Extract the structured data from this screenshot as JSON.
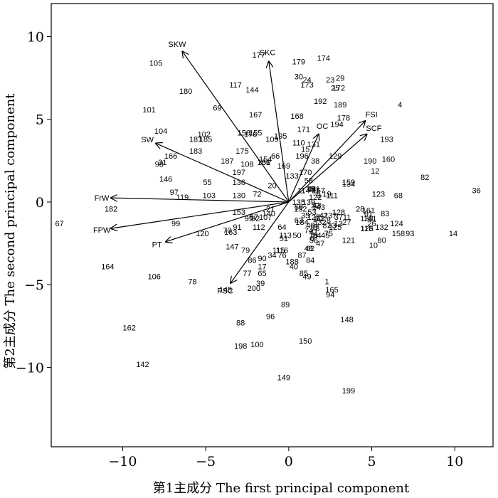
{
  "chart_data": {
    "type": "scatter",
    "subtype": "pca-biplot",
    "xlabel": "第1主成分 The first principal component",
    "ylabel": "第2主成分  The second principal component",
    "xlim": [
      -14.3,
      12.3
    ],
    "ylim": [
      -14.8,
      12.0
    ],
    "xticks": [
      -10,
      -5,
      0,
      5,
      10
    ],
    "yticks": [
      -10,
      -5,
      0,
      5,
      10
    ],
    "xtick_labels": [
      "−10",
      "−5",
      "0",
      "5",
      "10"
    ],
    "ytick_labels": [
      "−10",
      "−5",
      "0",
      "5",
      "10"
    ],
    "grid": false,
    "loadings": [
      {
        "name": "SKW",
        "x": -6.4,
        "y": 9.1
      },
      {
        "name": "SKC",
        "x": -1.2,
        "y": 8.5
      },
      {
        "name": "SW",
        "x": -8.0,
        "y": 3.55
      },
      {
        "name": "FrW",
        "x": -10.7,
        "y": 0.25
      },
      {
        "name": "FPW",
        "x": -10.7,
        "y": -1.6
      },
      {
        "name": "PT",
        "x": -7.4,
        "y": -2.4
      },
      {
        "name": "PSC",
        "x": -3.5,
        "y": -4.9
      },
      {
        "name": "OC",
        "x": 1.8,
        "y": 4.1
      },
      {
        "name": "FSI",
        "x": 4.6,
        "y": 4.9
      },
      {
        "name": "SCF",
        "x": 4.7,
        "y": 4.1
      }
    ],
    "points": [
      {
        "label": "1",
        "x": 2.3,
        "y": -4.8
      },
      {
        "label": "2",
        "x": 1.7,
        "y": -4.3
      },
      {
        "label": "3",
        "x": 1.6,
        "y": -1.5
      },
      {
        "label": "4",
        "x": 6.7,
        "y": 5.9
      },
      {
        "label": "5",
        "x": 1.6,
        "y": -1.2
      },
      {
        "label": "6",
        "x": 1.4,
        "y": -2.2
      },
      {
        "label": "7",
        "x": 1.7,
        "y": -1.5
      },
      {
        "label": "8",
        "x": 2.4,
        "y": -1.1
      },
      {
        "label": "9",
        "x": 1.8,
        "y": 0.4
      },
      {
        "label": "10",
        "x": 5.1,
        "y": -2.6
      },
      {
        "label": "11",
        "x": 3.5,
        "y": -0.9
      },
      {
        "label": "12",
        "x": 5.2,
        "y": 1.9
      },
      {
        "label": "13",
        "x": 3.0,
        "y": -1.3
      },
      {
        "label": "14",
        "x": 9.9,
        "y": -1.9
      },
      {
        "label": "15",
        "x": 1.0,
        "y": 3.2
      },
      {
        "label": "16",
        "x": 1.5,
        "y": -2.0
      },
      {
        "label": "17",
        "x": -1.6,
        "y": -3.9
      },
      {
        "label": "18",
        "x": 1.3,
        "y": 0.8
      },
      {
        "label": "19",
        "x": 2.3,
        "y": 0.5
      },
      {
        "label": "20",
        "x": -1.0,
        "y": 1.0
      },
      {
        "label": "21",
        "x": -1.1,
        "y": -0.4
      },
      {
        "label": "22",
        "x": 1.6,
        "y": -0.2
      },
      {
        "label": "23",
        "x": 2.5,
        "y": 7.4
      },
      {
        "label": "24",
        "x": 1.1,
        "y": 7.4
      },
      {
        "label": "25",
        "x": 2.8,
        "y": 6.9
      },
      {
        "label": "26",
        "x": 5.0,
        "y": -1.3
      },
      {
        "label": "27",
        "x": 3.5,
        "y": -1.2
      },
      {
        "label": "28",
        "x": 4.3,
        "y": -0.4
      },
      {
        "label": "29",
        "x": 3.1,
        "y": 7.5
      },
      {
        "label": "30",
        "x": 0.6,
        "y": 7.6
      },
      {
        "label": "31",
        "x": -7.6,
        "y": 2.4
      },
      {
        "label": "32",
        "x": 2.0,
        "y": -1.2
      },
      {
        "label": "33",
        "x": 2.6,
        "y": -1.4
      },
      {
        "label": "34",
        "x": -1.0,
        "y": -3.2
      },
      {
        "label": "35",
        "x": 1.0,
        "y": -0.8
      },
      {
        "label": "36",
        "x": 11.3,
        "y": 0.7
      },
      {
        "label": "37",
        "x": 3.0,
        "y": -0.9
      },
      {
        "label": "38",
        "x": 1.6,
        "y": 2.5
      },
      {
        "label": "39",
        "x": -1.7,
        "y": -4.9
      },
      {
        "label": "40",
        "x": 0.3,
        "y": -3.9
      },
      {
        "label": "41",
        "x": 1.5,
        "y": -1.8
      },
      {
        "label": "42",
        "x": 2.1,
        "y": -0.8
      },
      {
        "label": "43",
        "x": 1.7,
        "y": -0.2
      },
      {
        "label": "44",
        "x": 1.4,
        "y": 0.8
      },
      {
        "label": "45",
        "x": 2.2,
        "y": -2.0
      },
      {
        "label": "46",
        "x": 1.3,
        "y": -1.4
      },
      {
        "label": "47",
        "x": 1.9,
        "y": -2.5
      },
      {
        "label": "48",
        "x": 1.2,
        "y": -2.8
      },
      {
        "label": "49",
        "x": 1.1,
        "y": -4.5
      },
      {
        "label": "50",
        "x": 0.5,
        "y": -2.0
      },
      {
        "label": "51",
        "x": -0.3,
        "y": -2.2
      },
      {
        "label": "52",
        "x": 1.9,
        "y": -1.0
      },
      {
        "label": "53",
        "x": 1.4,
        "y": -0.6
      },
      {
        "label": "54",
        "x": 1.7,
        "y": -2.0
      },
      {
        "label": "55",
        "x": -4.9,
        "y": 1.2
      },
      {
        "label": "56",
        "x": 1.5,
        "y": -2.3
      },
      {
        "label": "57",
        "x": -2.1,
        "y": -0.9
      },
      {
        "label": "58",
        "x": 1.2,
        "y": 1.3
      },
      {
        "label": "59",
        "x": 0.6,
        "y": -0.3
      },
      {
        "label": "60",
        "x": 1.8,
        "y": -1.0
      },
      {
        "label": "61",
        "x": 4.8,
        "y": -0.7
      },
      {
        "label": "62",
        "x": 1.3,
        "y": -2.8
      },
      {
        "label": "63",
        "x": 0.6,
        "y": -1.1
      },
      {
        "label": "64",
        "x": -0.4,
        "y": -1.5
      },
      {
        "label": "65",
        "x": -1.6,
        "y": -4.3
      },
      {
        "label": "66",
        "x": -0.8,
        "y": 2.8
      },
      {
        "label": "67",
        "x": -13.8,
        "y": -1.3
      },
      {
        "label": "68",
        "x": 6.6,
        "y": 0.4
      },
      {
        "label": "69",
        "x": -4.3,
        "y": 5.7
      },
      {
        "label": "70",
        "x": -3.7,
        "y": -1.7
      },
      {
        "label": "71",
        "x": 1.6,
        "y": 0.7
      },
      {
        "label": "72",
        "x": -1.9,
        "y": 0.5
      },
      {
        "label": "73",
        "x": 1.6,
        "y": -1.6
      },
      {
        "label": "74",
        "x": 1.2,
        "y": -1.7
      },
      {
        "label": "75",
        "x": 2.4,
        "y": -1.9
      },
      {
        "label": "76",
        "x": -0.4,
        "y": -3.2
      },
      {
        "label": "77",
        "x": -2.5,
        "y": -4.3
      },
      {
        "label": "78",
        "x": -5.8,
        "y": -4.8
      },
      {
        "label": "79",
        "x": -2.6,
        "y": -2.9
      },
      {
        "label": "80",
        "x": 5.6,
        "y": -2.3
      },
      {
        "label": "81",
        "x": 2.3,
        "y": -1.4
      },
      {
        "label": "82",
        "x": 8.2,
        "y": 1.5
      },
      {
        "label": "83",
        "x": 5.8,
        "y": -0.7
      },
      {
        "label": "84",
        "x": 1.3,
        "y": -3.5
      },
      {
        "label": "85",
        "x": 0.9,
        "y": -4.3
      },
      {
        "label": "86",
        "x": -2.2,
        "y": -3.5
      },
      {
        "label": "87",
        "x": 0.8,
        "y": -3.2
      },
      {
        "label": "88",
        "x": -2.9,
        "y": -7.3
      },
      {
        "label": "89",
        "x": -0.2,
        "y": -6.2
      },
      {
        "label": "90",
        "x": -1.6,
        "y": -3.4
      },
      {
        "label": "91",
        "x": -3.1,
        "y": -1.5
      },
      {
        "label": "92",
        "x": -2.0,
        "y": -1.0
      },
      {
        "label": "93",
        "x": 7.3,
        "y": -1.9
      },
      {
        "label": "94",
        "x": 2.5,
        "y": -5.6
      },
      {
        "label": "95",
        "x": -2.4,
        "y": -1.0
      },
      {
        "label": "96",
        "x": -1.1,
        "y": -6.9
      },
      {
        "label": "97",
        "x": -6.9,
        "y": 0.6
      },
      {
        "label": "98",
        "x": -7.8,
        "y": 2.3
      },
      {
        "label": "99",
        "x": -6.8,
        "y": -1.3
      },
      {
        "label": "100",
        "x": -1.9,
        "y": -8.6
      },
      {
        "label": "101",
        "x": -8.4,
        "y": 5.6
      },
      {
        "label": "102",
        "x": -5.1,
        "y": 4.1
      },
      {
        "label": "103",
        "x": -4.8,
        "y": 0.4
      },
      {
        "label": "104",
        "x": -7.7,
        "y": 4.3
      },
      {
        "label": "105",
        "x": -8.0,
        "y": 8.4
      },
      {
        "label": "106",
        "x": -8.1,
        "y": -4.5
      },
      {
        "label": "107",
        "x": -1.4,
        "y": -0.9
      },
      {
        "label": "108",
        "x": -2.5,
        "y": 2.3
      },
      {
        "label": "109",
        "x": -1.0,
        "y": 3.8
      },
      {
        "label": "110",
        "x": 0.6,
        "y": 3.6
      },
      {
        "label": "111",
        "x": 2.6,
        "y": 0.4
      },
      {
        "label": "112",
        "x": -1.8,
        "y": -1.5
      },
      {
        "label": "113",
        "x": -0.2,
        "y": -2.0
      },
      {
        "label": "114",
        "x": 0.9,
        "y": 0.7
      },
      {
        "label": "115",
        "x": -0.6,
        "y": -2.9
      },
      {
        "label": "116",
        "x": -0.4,
        "y": -2.9
      },
      {
        "label": "117",
        "x": -3.2,
        "y": 7.1
      },
      {
        "label": "118",
        "x": 4.7,
        "y": -1.6
      },
      {
        "label": "119",
        "x": -6.4,
        "y": 0.3
      },
      {
        "label": "120",
        "x": -5.2,
        "y": -1.9
      },
      {
        "label": "121",
        "x": 3.6,
        "y": -2.3
      },
      {
        "label": "122",
        "x": 1.6,
        "y": 0.3
      },
      {
        "label": "123",
        "x": 5.4,
        "y": 0.5
      },
      {
        "label": "124",
        "x": 6.5,
        "y": -1.3
      },
      {
        "label": "125",
        "x": 2.8,
        "y": -1.5
      },
      {
        "label": "126",
        "x": 4.7,
        "y": -1.6
      },
      {
        "label": "127",
        "x": 1.5,
        "y": -0.9
      },
      {
        "label": "128",
        "x": 3.0,
        "y": -0.6
      },
      {
        "label": "129",
        "x": 2.8,
        "y": 2.8
      },
      {
        "label": "130",
        "x": -3.0,
        "y": 0.4
      },
      {
        "label": "131",
        "x": 1.5,
        "y": 3.5
      },
      {
        "label": "132",
        "x": 5.6,
        "y": -1.5
      },
      {
        "label": "133",
        "x": 0.2,
        "y": 1.6
      },
      {
        "label": "134",
        "x": 3.6,
        "y": 1.1
      },
      {
        "label": "135",
        "x": 0.6,
        "y": 0.0
      },
      {
        "label": "136",
        "x": -3.0,
        "y": 1.2
      },
      {
        "label": "137",
        "x": 2.5,
        "y": -0.8
      },
      {
        "label": "138",
        "x": 4.7,
        "y": -1.0
      },
      {
        "label": "139",
        "x": 1.2,
        "y": 0.0
      },
      {
        "label": "140",
        "x": -1.2,
        "y": -0.7
      },
      {
        "label": "141",
        "x": 4.9,
        "y": -1.0
      },
      {
        "label": "142",
        "x": -8.8,
        "y": -9.8
      },
      {
        "label": "143",
        "x": 1.8,
        "y": -0.3
      },
      {
        "label": "144",
        "x": -2.2,
        "y": 6.8
      },
      {
        "label": "145",
        "x": -3.8,
        "y": -5.3
      },
      {
        "label": "146",
        "x": -7.4,
        "y": 1.4
      },
      {
        "label": "147",
        "x": -3.4,
        "y": -2.7
      },
      {
        "label": "148",
        "x": 3.5,
        "y": -7.1
      },
      {
        "label": "149",
        "x": -0.3,
        "y": -10.6
      },
      {
        "label": "150",
        "x": 1.0,
        "y": -8.4
      },
      {
        "label": "151",
        "x": -1.5,
        "y": 2.4
      },
      {
        "label": "152",
        "x": 0.7,
        "y": -0.4
      },
      {
        "label": "153",
        "x": -3.0,
        "y": -0.6
      },
      {
        "label": "154",
        "x": -1.4,
        "y": 2.6
      },
      {
        "label": "155",
        "x": -2.0,
        "y": 4.2
      },
      {
        "label": "156",
        "x": -2.7,
        "y": 4.2
      },
      {
        "label": "157",
        "x": 1.8,
        "y": 0.7
      },
      {
        "label": "158",
        "x": 6.6,
        "y": -1.9
      },
      {
        "label": "159",
        "x": 3.6,
        "y": 1.2
      },
      {
        "label": "160",
        "x": 6.0,
        "y": 2.6
      },
      {
        "label": "161",
        "x": 4.8,
        "y": -0.5
      },
      {
        "label": "162",
        "x": -9.6,
        "y": -7.6
      },
      {
        "label": "163",
        "x": -3.5,
        "y": -1.8
      },
      {
        "label": "164",
        "x": -10.9,
        "y": -3.9
      },
      {
        "label": "165",
        "x": 2.6,
        "y": -5.3
      },
      {
        "label": "166",
        "x": -7.1,
        "y": 2.8
      },
      {
        "label": "167",
        "x": -2.0,
        "y": 5.3
      },
      {
        "label": "168",
        "x": 0.5,
        "y": 5.2
      },
      {
        "label": "169",
        "x": -0.3,
        "y": 2.2
      },
      {
        "label": "170",
        "x": 1.0,
        "y": 1.8
      },
      {
        "label": "171",
        "x": 0.9,
        "y": 4.4
      },
      {
        "label": "172",
        "x": 3.0,
        "y": 6.9
      },
      {
        "label": "173",
        "x": 1.1,
        "y": 7.1
      },
      {
        "label": "174",
        "x": 2.1,
        "y": 8.7
      },
      {
        "label": "175",
        "x": -2.8,
        "y": 3.1
      },
      {
        "label": "176",
        "x": -2.3,
        "y": 4.1
      },
      {
        "label": "177",
        "x": -1.8,
        "y": 8.9
      },
      {
        "label": "178",
        "x": 3.3,
        "y": 5.1
      },
      {
        "label": "179",
        "x": 0.6,
        "y": 8.5
      },
      {
        "label": "180",
        "x": -6.2,
        "y": 6.7
      },
      {
        "label": "181",
        "x": -5.6,
        "y": 3.8
      },
      {
        "label": "182",
        "x": -10.7,
        "y": -0.4
      },
      {
        "label": "183",
        "x": -5.6,
        "y": 3.1
      },
      {
        "label": "184",
        "x": 0.8,
        "y": -1.2
      },
      {
        "label": "185",
        "x": -5.0,
        "y": 3.8
      },
      {
        "label": "186",
        "x": -1.5,
        "y": 2.4
      },
      {
        "label": "187",
        "x": -3.7,
        "y": 2.5
      },
      {
        "label": "188",
        "x": 0.2,
        "y": -3.6
      },
      {
        "label": "189",
        "x": 3.1,
        "y": 5.9
      },
      {
        "label": "190",
        "x": 4.9,
        "y": 2.5
      },
      {
        "label": "191",
        "x": 1.5,
        "y": 0.8
      },
      {
        "label": "192",
        "x": 1.9,
        "y": 6.1
      },
      {
        "label": "193",
        "x": 5.9,
        "y": 3.8
      },
      {
        "label": "194",
        "x": 2.9,
        "y": 4.7
      },
      {
        "label": "195",
        "x": -0.5,
        "y": 4.0
      },
      {
        "label": "196",
        "x": 0.8,
        "y": 2.8
      },
      {
        "label": "197",
        "x": -3.0,
        "y": 1.8
      },
      {
        "label": "198",
        "x": -2.9,
        "y": -8.7
      },
      {
        "label": "199",
        "x": 3.6,
        "y": -11.4
      },
      {
        "label": "200",
        "x": -2.1,
        "y": -5.2
      }
    ]
  }
}
